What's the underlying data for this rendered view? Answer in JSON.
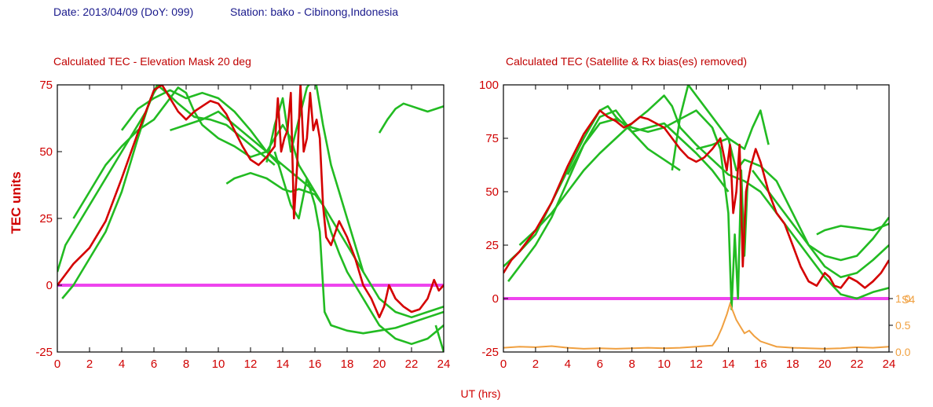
{
  "header": {
    "date_text": "Date: 2013/04/09 (DoY: 099)",
    "station_text": "Station: bako - Cibinong,Indonesia"
  },
  "colors": {
    "tec_mean": "#d40000",
    "satellite_tracks": "#22bb22",
    "zero_line": "#ee44ee",
    "s4": "#f0a040",
    "text_blue": "#1a1a8c"
  },
  "shared": {
    "ylabel": "TEC units",
    "xlabel": "UT (hrs)"
  },
  "chart_data": [
    {
      "type": "line",
      "title": "Calculated TEC - Elevation Mask 20 deg",
      "xlim": [
        0,
        24
      ],
      "ylim": [
        -25,
        75
      ],
      "xticks": [
        "0",
        "2",
        "4",
        "6",
        "8",
        "10",
        "12",
        "14",
        "16",
        "18",
        "20",
        "22",
        "24"
      ],
      "yticks": [
        "-25",
        "0",
        "25",
        "50",
        "75"
      ],
      "zero_line": 0,
      "series": [
        {
          "role": "mean",
          "x": [
            0,
            0.5,
            1,
            2,
            3,
            4,
            5,
            6,
            6.5,
            7,
            7.5,
            8,
            8.5,
            9,
            9.5,
            10,
            10.5,
            11,
            11.5,
            12,
            12.5,
            13,
            13.5,
            13.7,
            13.9,
            14.1,
            14.3,
            14.5,
            14.7,
            14.9,
            15.1,
            15.3,
            15.5,
            15.7,
            15.9,
            16.1,
            16.3,
            16.5,
            16.7,
            17,
            17.5,
            18,
            18.5,
            19,
            19.5,
            20,
            20.3,
            20.6,
            21,
            21.5,
            22,
            22.5,
            23,
            23.4,
            23.7,
            24
          ],
          "y": [
            0,
            4,
            8,
            14,
            24,
            40,
            57,
            73,
            75,
            70,
            65,
            62,
            65,
            67,
            69,
            68,
            64,
            58,
            52,
            47,
            45,
            48,
            52,
            70,
            50,
            55,
            58,
            72,
            25,
            45,
            75,
            50,
            55,
            72,
            58,
            62,
            55,
            30,
            18,
            15,
            24,
            18,
            10,
            0,
            -5,
            -12,
            -8,
            0,
            -5,
            -8,
            -10,
            -9,
            -5,
            2,
            -2,
            0
          ]
        },
        {
          "role": "track",
          "x": [
            0,
            0.5,
            1.5,
            2.5,
            3.5,
            4.5,
            5.5,
            6.2,
            6.8,
            7.5,
            8.5,
            9.5,
            10.5,
            11.5,
            12.5,
            13.5
          ],
          "y": [
            5,
            15,
            25,
            35,
            45,
            55,
            65,
            75,
            72,
            68,
            63,
            62,
            60,
            55,
            50,
            45
          ]
        },
        {
          "role": "track",
          "x": [
            0.3,
            1,
            2,
            3,
            4,
            5,
            5.8,
            6.3
          ],
          "y": [
            -5,
            0,
            10,
            20,
            35,
            55,
            70,
            75
          ]
        },
        {
          "role": "track",
          "x": [
            1,
            2,
            3,
            4,
            5,
            6,
            7,
            7.5,
            8,
            8.5,
            9,
            10,
            11,
            12,
            13,
            14,
            14.5,
            15,
            15.5,
            16
          ],
          "y": [
            25,
            35,
            45,
            52,
            58,
            62,
            70,
            74,
            72,
            65,
            60,
            55,
            52,
            48,
            50,
            60,
            55,
            45,
            40,
            35
          ]
        },
        {
          "role": "track",
          "x": [
            4,
            5,
            6,
            7,
            8,
            9,
            10,
            11,
            12,
            13,
            13.8
          ],
          "y": [
            58,
            66,
            70,
            73,
            70,
            72,
            70,
            65,
            58,
            50,
            45
          ]
        },
        {
          "role": "track",
          "x": [
            7,
            8,
            9,
            10,
            11,
            12,
            13,
            14,
            15,
            16,
            16.5,
            17,
            18,
            19,
            20,
            21,
            22,
            23,
            24
          ],
          "y": [
            58,
            60,
            62,
            65,
            60,
            55,
            50,
            45,
            40,
            35,
            30,
            25,
            15,
            5,
            -5,
            -10,
            -12,
            -10,
            -8
          ]
        },
        {
          "role": "track",
          "x": [
            10.5,
            11,
            12,
            13,
            14,
            14.5,
            15,
            16,
            16.5,
            17,
            17.5,
            18,
            19,
            20,
            21,
            22,
            23,
            24
          ],
          "y": [
            38,
            40,
            42,
            40,
            36,
            35,
            36,
            34,
            30,
            20,
            12,
            5,
            -5,
            -15,
            -20,
            -22,
            -20,
            -15
          ]
        },
        {
          "role": "track",
          "x": [
            13,
            13.5,
            14,
            14.5,
            15,
            15.5,
            16,
            16.5,
            17,
            17.5,
            18,
            18.5,
            19
          ],
          "y": [
            46,
            60,
            70,
            50,
            62,
            74,
            78,
            60,
            45,
            35,
            25,
            15,
            5
          ]
        },
        {
          "role": "track",
          "x": [
            13.5,
            14,
            14.5,
            15,
            15.5,
            16,
            16.3,
            16.6,
            17,
            18,
            19,
            20,
            21,
            22,
            23,
            24
          ],
          "y": [
            50,
            40,
            30,
            25,
            40,
            30,
            20,
            -10,
            -15,
            -17,
            -18,
            -17,
            -16,
            -14,
            -12,
            -10
          ]
        },
        {
          "role": "track",
          "x": [
            20,
            20.5,
            21,
            21.5,
            22,
            22.5,
            23,
            23.5,
            24
          ],
          "y": [
            57,
            62,
            66,
            68,
            67,
            66,
            65,
            66,
            67
          ]
        },
        {
          "role": "track",
          "x": [
            23.5,
            24
          ],
          "y": [
            -15,
            -25
          ]
        }
      ]
    },
    {
      "type": "line",
      "title": "Calculated TEC (Satellite & Rx bias(es) removed)",
      "xlim": [
        0,
        24
      ],
      "ylim": [
        -25,
        100
      ],
      "xticks": [
        "0",
        "2",
        "4",
        "6",
        "8",
        "10",
        "12",
        "14",
        "16",
        "18",
        "20",
        "22",
        "24"
      ],
      "yticks": [
        "-25",
        "0",
        "25",
        "50",
        "75",
        "100"
      ],
      "zero_line": 0,
      "s4_axis": {
        "label": "S4",
        "ticks": [
          "0.0",
          "0.5",
          "1.0"
        ],
        "range": [
          0,
          1
        ]
      },
      "series": [
        {
          "role": "mean",
          "x": [
            0,
            0.5,
            1,
            2,
            3,
            4,
            5,
            6,
            6.5,
            7,
            7.5,
            8,
            8.5,
            9,
            9.5,
            10,
            10.5,
            11,
            11.5,
            12,
            12.5,
            13,
            13.5,
            13.9,
            14.1,
            14.3,
            14.5,
            14.7,
            14.9,
            15.1,
            15.4,
            15.7,
            16,
            16.5,
            17,
            17.5,
            18,
            18.5,
            19,
            19.5,
            20,
            20.3,
            20.6,
            21,
            21.5,
            22,
            22.5,
            23,
            23.5,
            24
          ],
          "y": [
            12,
            18,
            22,
            32,
            45,
            62,
            77,
            88,
            85,
            83,
            80,
            82,
            85,
            84,
            82,
            80,
            75,
            70,
            66,
            64,
            66,
            70,
            75,
            60,
            72,
            40,
            50,
            72,
            15,
            50,
            62,
            70,
            64,
            50,
            40,
            35,
            25,
            15,
            8,
            6,
            12,
            10,
            6,
            5,
            10,
            8,
            5,
            8,
            12,
            18
          ]
        },
        {
          "role": "track",
          "x": [
            0,
            1,
            2,
            3,
            4,
            5,
            6,
            6.5,
            7,
            8,
            9,
            10,
            11,
            12,
            13,
            14
          ],
          "y": [
            15,
            22,
            30,
            45,
            60,
            75,
            88,
            90,
            85,
            78,
            80,
            82,
            75,
            68,
            60,
            50
          ]
        },
        {
          "role": "track",
          "x": [
            0.3,
            1,
            2,
            3,
            4,
            5,
            6,
            7,
            8,
            9,
            10,
            11
          ],
          "y": [
            8,
            15,
            25,
            38,
            55,
            72,
            85,
            88,
            78,
            70,
            65,
            60
          ]
        },
        {
          "role": "track",
          "x": [
            1,
            2,
            3,
            4,
            5,
            6,
            7,
            8,
            9,
            10,
            10.5,
            11,
            12,
            13,
            14,
            15,
            16,
            17,
            18,
            19,
            20,
            21,
            22,
            23,
            24
          ],
          "y": [
            25,
            32,
            40,
            50,
            60,
            68,
            75,
            82,
            88,
            95,
            90,
            80,
            72,
            65,
            58,
            55,
            50,
            40,
            30,
            20,
            10,
            2,
            0,
            3,
            5
          ]
        },
        {
          "role": "track",
          "x": [
            4,
            5,
            6,
            7,
            8,
            9,
            10,
            11,
            12,
            13,
            13.5
          ],
          "y": [
            58,
            72,
            82,
            84,
            80,
            78,
            80,
            84,
            88,
            80,
            70
          ]
        },
        {
          "role": "track",
          "x": [
            10.5,
            11,
            11.5,
            12,
            13,
            14,
            15,
            15.5,
            16,
            16.5
          ],
          "y": [
            60,
            85,
            100,
            95,
            85,
            75,
            70,
            80,
            88,
            72
          ]
        },
        {
          "role": "track",
          "x": [
            12,
            13,
            14,
            14.5,
            15,
            16,
            17,
            18,
            19,
            20,
            21,
            22,
            23,
            24
          ],
          "y": [
            70,
            72,
            75,
            60,
            65,
            62,
            55,
            40,
            25,
            15,
            10,
            12,
            18,
            25
          ]
        },
        {
          "role": "track",
          "x": [
            13,
            13.5,
            14,
            14.2,
            14.4,
            14.6,
            14.8,
            15,
            15.2
          ],
          "y": [
            80,
            70,
            40,
            -5,
            30,
            0,
            60,
            20,
            55
          ]
        },
        {
          "role": "track",
          "x": [
            15.5,
            16,
            17,
            18,
            19,
            20,
            21,
            22,
            23,
            24
          ],
          "y": [
            60,
            55,
            45,
            35,
            25,
            20,
            18,
            20,
            28,
            38
          ]
        },
        {
          "role": "track",
          "x": [
            19.5,
            20,
            21,
            22,
            23,
            24
          ],
          "y": [
            30,
            32,
            34,
            33,
            32,
            35
          ]
        }
      ],
      "s4": {
        "x": [
          0,
          1,
          2,
          3,
          4,
          5,
          6,
          7,
          8,
          9,
          10,
          11,
          12,
          13,
          13.3,
          13.6,
          13.9,
          14.1,
          14.3,
          14.5,
          14.7,
          15,
          15.3,
          15.6,
          16,
          17,
          18,
          19,
          20,
          21,
          22,
          23,
          24
        ],
        "y": [
          0.08,
          0.1,
          0.09,
          0.11,
          0.08,
          0.06,
          0.07,
          0.06,
          0.07,
          0.08,
          0.07,
          0.08,
          0.1,
          0.12,
          0.25,
          0.45,
          0.7,
          0.9,
          0.75,
          0.6,
          0.5,
          0.35,
          0.4,
          0.3,
          0.2,
          0.1,
          0.08,
          0.07,
          0.06,
          0.07,
          0.09,
          0.08,
          0.1
        ]
      }
    }
  ]
}
